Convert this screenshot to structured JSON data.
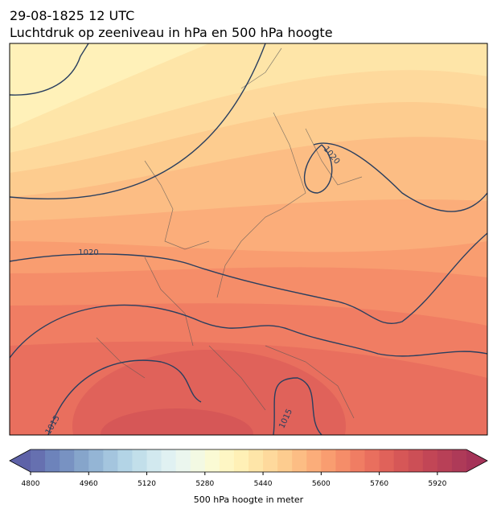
{
  "title": [
    "29-08-1825 12 UTC",
    "Luchtdruk op zeeniveau in hPa en 500 hPa hoogte"
  ],
  "contour_labels": [
    "1020",
    "1020",
    "1015",
    "1015"
  ],
  "colorbar": {
    "label": "500 hPa hoogte in meter",
    "lim": [
      4800,
      6000
    ],
    "ticks": [
      4800,
      4960,
      5120,
      5280,
      5440,
      5600,
      5760,
      5920
    ],
    "under_color": "#5e62a8",
    "over_color": "#a53358",
    "colors": [
      "#6670b0",
      "#6d83bb",
      "#7892c2",
      "#86a5cb",
      "#94b5d5",
      "#a4c5de",
      "#b3d4e6",
      "#c2dfea",
      "#d2e9ef",
      "#e0f1f2",
      "#ebf6ee",
      "#f3f9e3",
      "#fafad4",
      "#fef6c4",
      "#fff0b6",
      "#fee5a8",
      "#fed99c",
      "#fdcc8f",
      "#fcbd84",
      "#fbad7a",
      "#f99d70",
      "#f58d69",
      "#f07d63",
      "#e96f5e",
      "#e0625a",
      "#d65757",
      "#cc4f56",
      "#c24656",
      "#b84057",
      "#ae3a58"
    ]
  }
}
